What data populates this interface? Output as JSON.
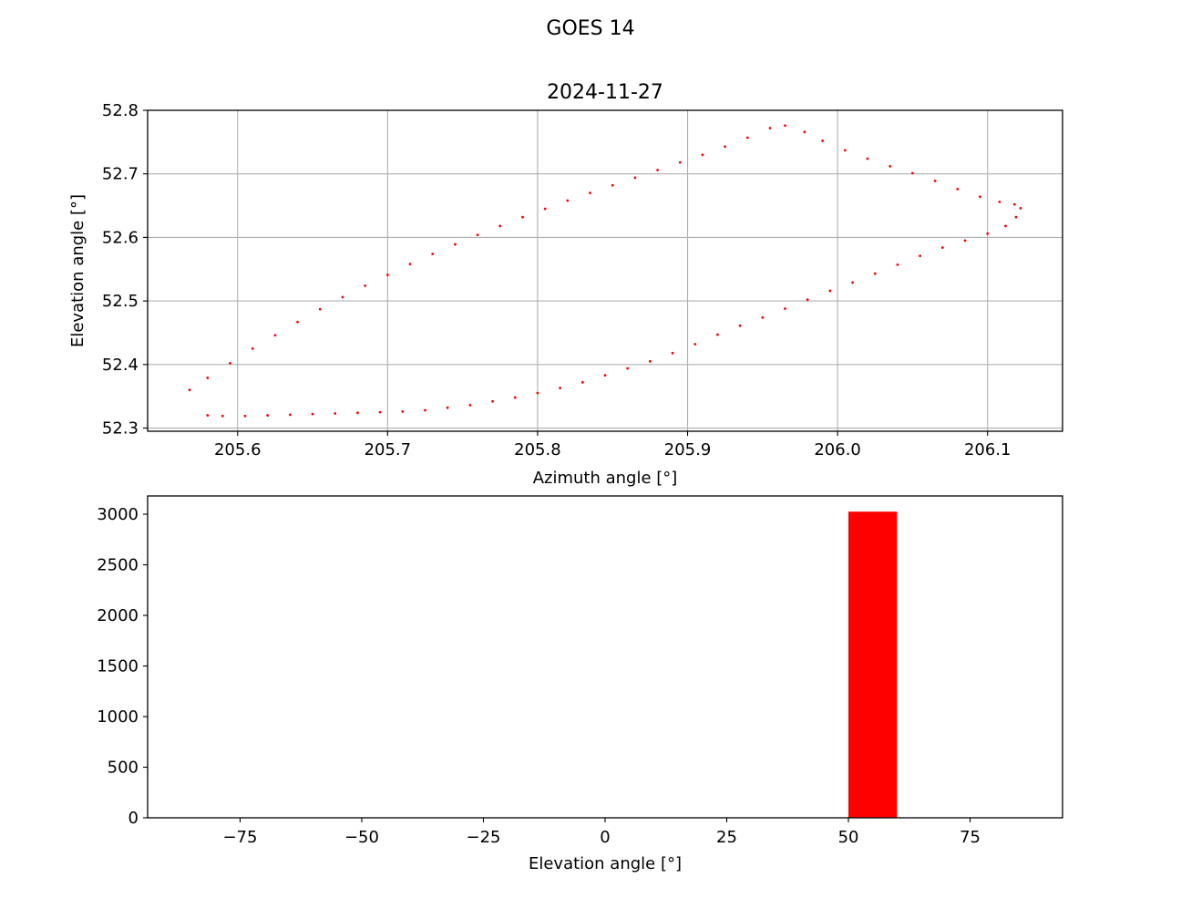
{
  "figure": {
    "suptitle": "GOES 14"
  },
  "chart_data": [
    {
      "type": "scatter",
      "title": "2024-11-27",
      "xlabel": "Azimuth angle [°]",
      "ylabel": "Elevation angle [°]",
      "xlim": [
        205.54,
        206.15
      ],
      "ylim": [
        52.295,
        52.8
      ],
      "xticks": [
        205.6,
        205.7,
        205.8,
        205.9,
        206.0,
        206.1
      ],
      "xtick_labels": [
        "205.6",
        "205.7",
        "205.8",
        "205.9",
        "206.0",
        "206.1"
      ],
      "yticks": [
        52.3,
        52.4,
        52.5,
        52.6,
        52.7,
        52.8
      ],
      "ytick_labels": [
        "52.3",
        "52.4",
        "52.5",
        "52.6",
        "52.7",
        "52.8"
      ],
      "grid": true,
      "marker_color": "#ff0000",
      "series": [
        {
          "x": [
            205.568,
            205.58,
            205.595,
            205.61,
            205.625,
            205.64,
            205.655,
            205.67,
            205.685,
            205.7,
            205.715,
            205.73,
            205.745,
            205.76,
            205.775,
            205.79,
            205.805,
            205.82,
            205.835,
            205.85,
            205.865,
            205.88,
            205.895,
            205.91,
            205.925,
            205.94,
            205.955,
            205.965,
            205.978,
            205.99,
            206.005,
            206.02,
            206.035,
            206.05,
            206.065,
            206.08,
            206.095,
            206.108,
            206.118,
            206.122,
            206.119,
            206.112,
            206.1,
            206.085,
            206.07,
            206.055,
            206.04,
            206.025,
            206.01,
            205.995,
            205.98,
            205.965,
            205.95,
            205.935,
            205.92,
            205.905,
            205.89,
            205.875,
            205.86,
            205.845,
            205.83,
            205.815,
            205.8,
            205.785,
            205.77,
            205.755,
            205.74,
            205.725,
            205.71,
            205.695,
            205.68,
            205.665,
            205.65,
            205.635,
            205.62,
            205.605,
            205.59,
            205.58
          ],
          "y": [
            52.36,
            52.379,
            52.402,
            52.425,
            52.446,
            52.467,
            52.487,
            52.506,
            52.524,
            52.541,
            52.558,
            52.574,
            52.589,
            52.604,
            52.618,
            52.632,
            52.645,
            52.658,
            52.67,
            52.682,
            52.694,
            52.706,
            52.718,
            52.73,
            52.743,
            52.757,
            52.772,
            52.776,
            52.766,
            52.752,
            52.737,
            52.724,
            52.712,
            52.701,
            52.689,
            52.676,
            52.664,
            52.656,
            52.652,
            52.646,
            52.632,
            52.618,
            52.606,
            52.595,
            52.584,
            52.571,
            52.557,
            52.543,
            52.529,
            52.516,
            52.502,
            52.488,
            52.474,
            52.461,
            52.447,
            52.432,
            52.418,
            52.405,
            52.394,
            52.383,
            52.372,
            52.363,
            52.355,
            52.348,
            52.342,
            52.336,
            52.332,
            52.328,
            52.326,
            52.325,
            52.324,
            52.323,
            52.322,
            52.321,
            52.32,
            52.319,
            52.319,
            52.32
          ]
        }
      ]
    },
    {
      "type": "bar",
      "title": "",
      "xlabel": "Elevation angle [°]",
      "ylabel": "",
      "xlim": [
        -94,
        94
      ],
      "ylim": [
        0,
        3180
      ],
      "xticks": [
        -75,
        -50,
        -25,
        0,
        25,
        50,
        75
      ],
      "xtick_labels": [
        "−75",
        "−50",
        "−25",
        "0",
        "25",
        "50",
        "75"
      ],
      "yticks": [
        0,
        500,
        1000,
        1500,
        2000,
        2500,
        3000
      ],
      "ytick_labels": [
        "0",
        "500",
        "1000",
        "1500",
        "2000",
        "2500",
        "3000"
      ],
      "grid": false,
      "bar_color": "#ff0000",
      "bins": [
        {
          "from": 50,
          "to": 60,
          "count": 3025
        }
      ]
    }
  ]
}
